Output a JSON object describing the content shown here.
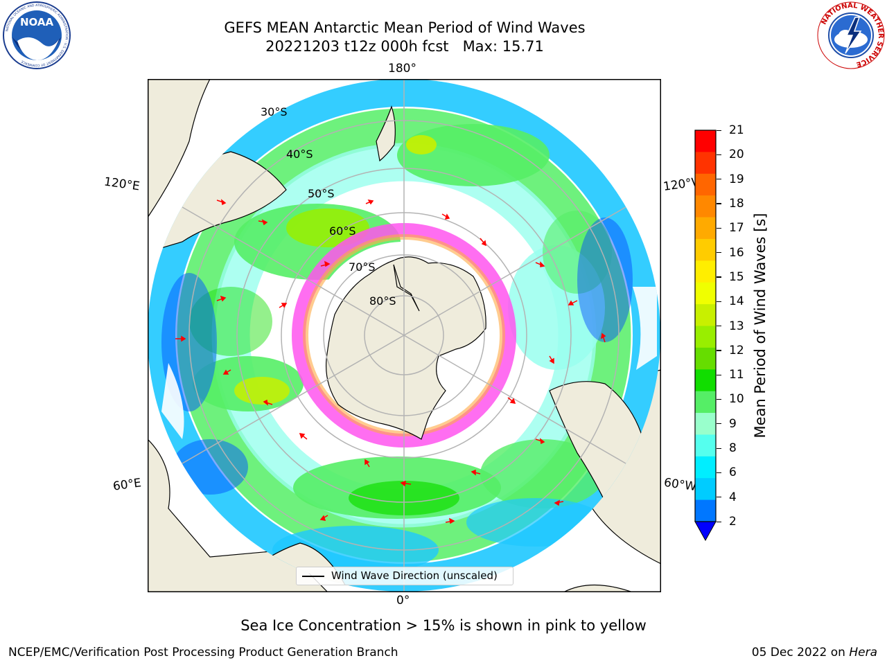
{
  "header": {
    "title_line1": "GEFS MEAN Antarctic Mean Period of Wind Waves",
    "title_line2": "20221203 t12z 000h fcst   Max: 15.71"
  },
  "logos": {
    "left": {
      "text": "NOAA",
      "ring": "NATIONAL OCEANIC AND ATMOSPHERIC ADMINISTRATION · U.S. DEPARTMENT OF COMMERCE"
    },
    "right": {
      "ring": "NATIONAL WEATHER SERVICE"
    }
  },
  "map": {
    "longitude_labels": {
      "top": "180°",
      "bottom": "0°",
      "upper_left": "120°E",
      "upper_right": "120°W",
      "lower_left": "60°E",
      "lower_right": "60°W"
    },
    "latitude_labels": [
      "30°S",
      "40°S",
      "50°S",
      "60°S",
      "70°S",
      "80°S"
    ],
    "legend_label": "Wind Wave Direction (unscaled)",
    "colors": {
      "land": "#efecdc",
      "coast": "#000000",
      "grid": "#b3b3b3",
      "arrows": "#ff0000",
      "sea_ice": "#ff66ff"
    }
  },
  "colorbar": {
    "label": "Mean Period of Wind Waves [s]",
    "ticks": [
      "21",
      "20",
      "19",
      "18",
      "17",
      "16",
      "15",
      "14",
      "13",
      "12",
      "11",
      "10",
      "9",
      "8",
      "6",
      "4",
      "2"
    ],
    "colors_top_to_bottom": [
      "#ff0000",
      "#ff3300",
      "#ff6600",
      "#ff8800",
      "#ffaa00",
      "#ffcc00",
      "#ffee00",
      "#f0ff00",
      "#c8f000",
      "#99ee00",
      "#66dd00",
      "#11dd00",
      "#55ee66",
      "#99ffcc",
      "#55ffee",
      "#00eeff",
      "#00ccff",
      "#0077ff"
    ],
    "extend_color": "#0000ff"
  },
  "subtitle": "Sea Ice Concentration > 15% is shown in pink to yellow",
  "footer": {
    "left": "NCEP/EMC/Verification Post Processing Product Generation Branch",
    "date": "05 Dec 2022 on",
    "host": "Hera"
  }
}
